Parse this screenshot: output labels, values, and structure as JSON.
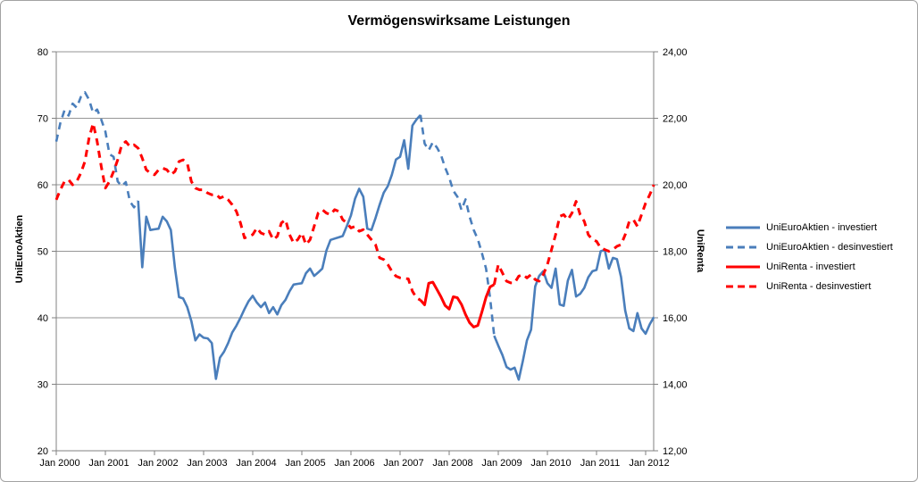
{
  "chart_data": {
    "type": "line",
    "title": "Vermögenswirksame Leistungen",
    "x_axis": {
      "interval": "monthly",
      "start": "Jan 2000",
      "end": "Mar 2012",
      "tick_labels": [
        "Jan 2000",
        "Jan 2001",
        "Jan 2002",
        "Jan 2003",
        "Jan 2004",
        "Jan 2005",
        "Jan 2006",
        "Jan 2007",
        "Jan 2008",
        "Jan 2009",
        "Jan 2010",
        "Jan 2011",
        "Jan 2012"
      ]
    },
    "y_axis_left": {
      "title": "UniEuroAktien",
      "range": [
        20,
        80
      ],
      "tick_labels": [
        "80",
        "70",
        "60",
        "50",
        "40",
        "30",
        "20"
      ],
      "tick_values": [
        80,
        70,
        60,
        50,
        40,
        30,
        20
      ]
    },
    "y_axis_right": {
      "title": "UniRenta",
      "range": [
        12,
        24
      ],
      "tick_labels": [
        "24,00",
        "22,00",
        "20,00",
        "18,00",
        "16,00",
        "14,00",
        "12,00"
      ],
      "tick_values": [
        24,
        22,
        20,
        18,
        16,
        14,
        12
      ]
    },
    "grid": "horizontal-only",
    "legend_position": "right",
    "series": [
      {
        "name": "UniEuroAktien",
        "axis": "left",
        "color": "#4A7EBB",
        "width": 2.6,
        "segments": [
          {
            "start": 0,
            "end": 20,
            "style": "dashed",
            "label": "UniEuroAktien - desinvestiert"
          },
          {
            "start": 20,
            "end": 89,
            "style": "solid",
            "label": "UniEuroAktien - investiert"
          },
          {
            "start": 89,
            "end": 107,
            "style": "dashed",
            "label": "UniEuroAktien - desinvestiert"
          },
          {
            "start": 107,
            "end": 146,
            "style": "solid",
            "label": "UniEuroAktien - investiert"
          }
        ],
        "values": [
          66.5,
          69.3,
          71.2,
          70.4,
          72.2,
          71.6,
          73.2,
          73.9,
          72.8,
          70.8,
          71.3,
          69.8,
          68.0,
          64.6,
          64.2,
          60.5,
          59.8,
          60.4,
          57.5,
          56.6,
          57.6,
          47.6,
          55.2,
          53.2,
          53.3,
          53.4,
          55.2,
          54.5,
          53.2,
          47.5,
          43.1,
          42.9,
          41.6,
          39.5,
          36.6,
          37.5,
          37.0,
          36.9,
          36.2,
          30.8,
          34.0,
          34.9,
          36.2,
          37.8,
          38.8,
          40.0,
          41.3,
          42.5,
          43.3,
          42.3,
          41.6,
          42.3,
          40.7,
          41.6,
          40.5,
          41.9,
          42.7,
          44.0,
          45.0,
          45.1,
          45.2,
          46.7,
          47.4,
          46.3,
          46.8,
          47.4,
          50.1,
          51.7,
          51.9,
          52.1,
          52.3,
          53.8,
          55.4,
          57.9,
          59.4,
          58.2,
          53.4,
          53.2,
          55.0,
          57.0,
          58.8,
          59.8,
          61.5,
          63.8,
          64.2,
          66.7,
          62.4,
          68.9,
          69.8,
          70.5,
          66.2,
          65.2,
          66.4,
          65.6,
          64.5,
          62.6,
          61.1,
          59.1,
          58.2,
          56.2,
          57.8,
          55.2,
          53.2,
          51.8,
          49.7,
          47.4,
          43.0,
          37.3,
          35.8,
          34.4,
          32.6,
          32.2,
          32.5,
          30.7,
          33.5,
          36.6,
          38.2,
          44.7,
          46.3,
          47.0,
          45.2,
          44.5,
          47.4,
          42.0,
          41.8,
          45.6,
          47.2,
          43.2,
          43.6,
          44.5,
          46.1,
          47.0,
          47.2,
          50.0,
          50.2,
          47.4,
          49.0,
          48.8,
          46.1,
          41.1,
          38.4,
          38.0,
          40.7,
          38.4,
          37.6,
          39.0,
          40.1
        ]
      },
      {
        "name": "UniRenta",
        "axis": "right",
        "color": "#FF0000",
        "width": 3,
        "segments": [
          {
            "start": 0,
            "end": 89,
            "style": "dashed",
            "label": "UniRenta - desinvestiert"
          },
          {
            "start": 89,
            "end": 107,
            "style": "solid",
            "label": "UniRenta - investiert"
          },
          {
            "start": 107,
            "end": 146,
            "style": "dashed",
            "label": "UniRenta - desinvestiert"
          }
        ],
        "values": [
          19.55,
          19.85,
          20.1,
          20.15,
          20.0,
          20.1,
          20.35,
          20.7,
          21.4,
          21.85,
          21.3,
          20.55,
          19.9,
          20.1,
          20.4,
          20.75,
          21.2,
          21.3,
          21.15,
          21.2,
          21.1,
          20.8,
          20.45,
          20.35,
          20.3,
          20.45,
          20.5,
          20.45,
          20.3,
          20.4,
          20.7,
          20.75,
          20.65,
          20.1,
          19.9,
          19.85,
          19.85,
          19.75,
          19.7,
          19.72,
          19.6,
          19.65,
          19.55,
          19.4,
          19.2,
          18.85,
          18.4,
          18.45,
          18.5,
          18.7,
          18.55,
          18.5,
          18.6,
          18.35,
          18.45,
          18.85,
          18.95,
          18.5,
          18.25,
          18.35,
          18.55,
          18.2,
          18.35,
          18.75,
          19.15,
          19.25,
          19.15,
          19.1,
          19.25,
          19.2,
          18.95,
          18.85,
          18.7,
          18.75,
          18.6,
          18.65,
          18.5,
          18.35,
          18.2,
          17.8,
          17.75,
          17.6,
          17.4,
          17.25,
          17.2,
          17.18,
          17.17,
          16.8,
          16.6,
          16.53,
          16.39,
          17.04,
          17.07,
          16.85,
          16.63,
          16.37,
          16.26,
          16.63,
          16.6,
          16.4,
          16.1,
          15.85,
          15.72,
          15.77,
          16.18,
          16.62,
          16.93,
          17.0,
          17.6,
          17.35,
          17.1,
          17.05,
          17.05,
          17.25,
          17.3,
          17.2,
          17.3,
          17.15,
          17.1,
          17.3,
          17.6,
          18.05,
          18.5,
          19.05,
          19.1,
          18.95,
          19.15,
          19.5,
          19.1,
          18.9,
          18.5,
          18.35,
          18.3,
          18.1,
          18.05,
          18.0,
          18.05,
          18.15,
          18.2,
          18.5,
          18.9,
          18.95,
          18.75,
          19.1,
          19.45,
          19.7,
          20.0
        ]
      }
    ],
    "legend": {
      "items": [
        {
          "label": "UniEuroAktien - investiert",
          "color": "#4A7EBB",
          "style": "solid"
        },
        {
          "label": "UniEuroAktien - desinvestiert",
          "color": "#4A7EBB",
          "style": "dashed"
        },
        {
          "label": "UniRenta - investiert",
          "color": "#FF0000",
          "style": "solid"
        },
        {
          "label": "UniRenta - desinvestiert",
          "color": "#FF0000",
          "style": "dashed"
        }
      ]
    },
    "colors": {
      "gridline": "#969696",
      "axis": "#808080",
      "background": "#FFFFFF",
      "border": "#A3A3A3"
    }
  }
}
